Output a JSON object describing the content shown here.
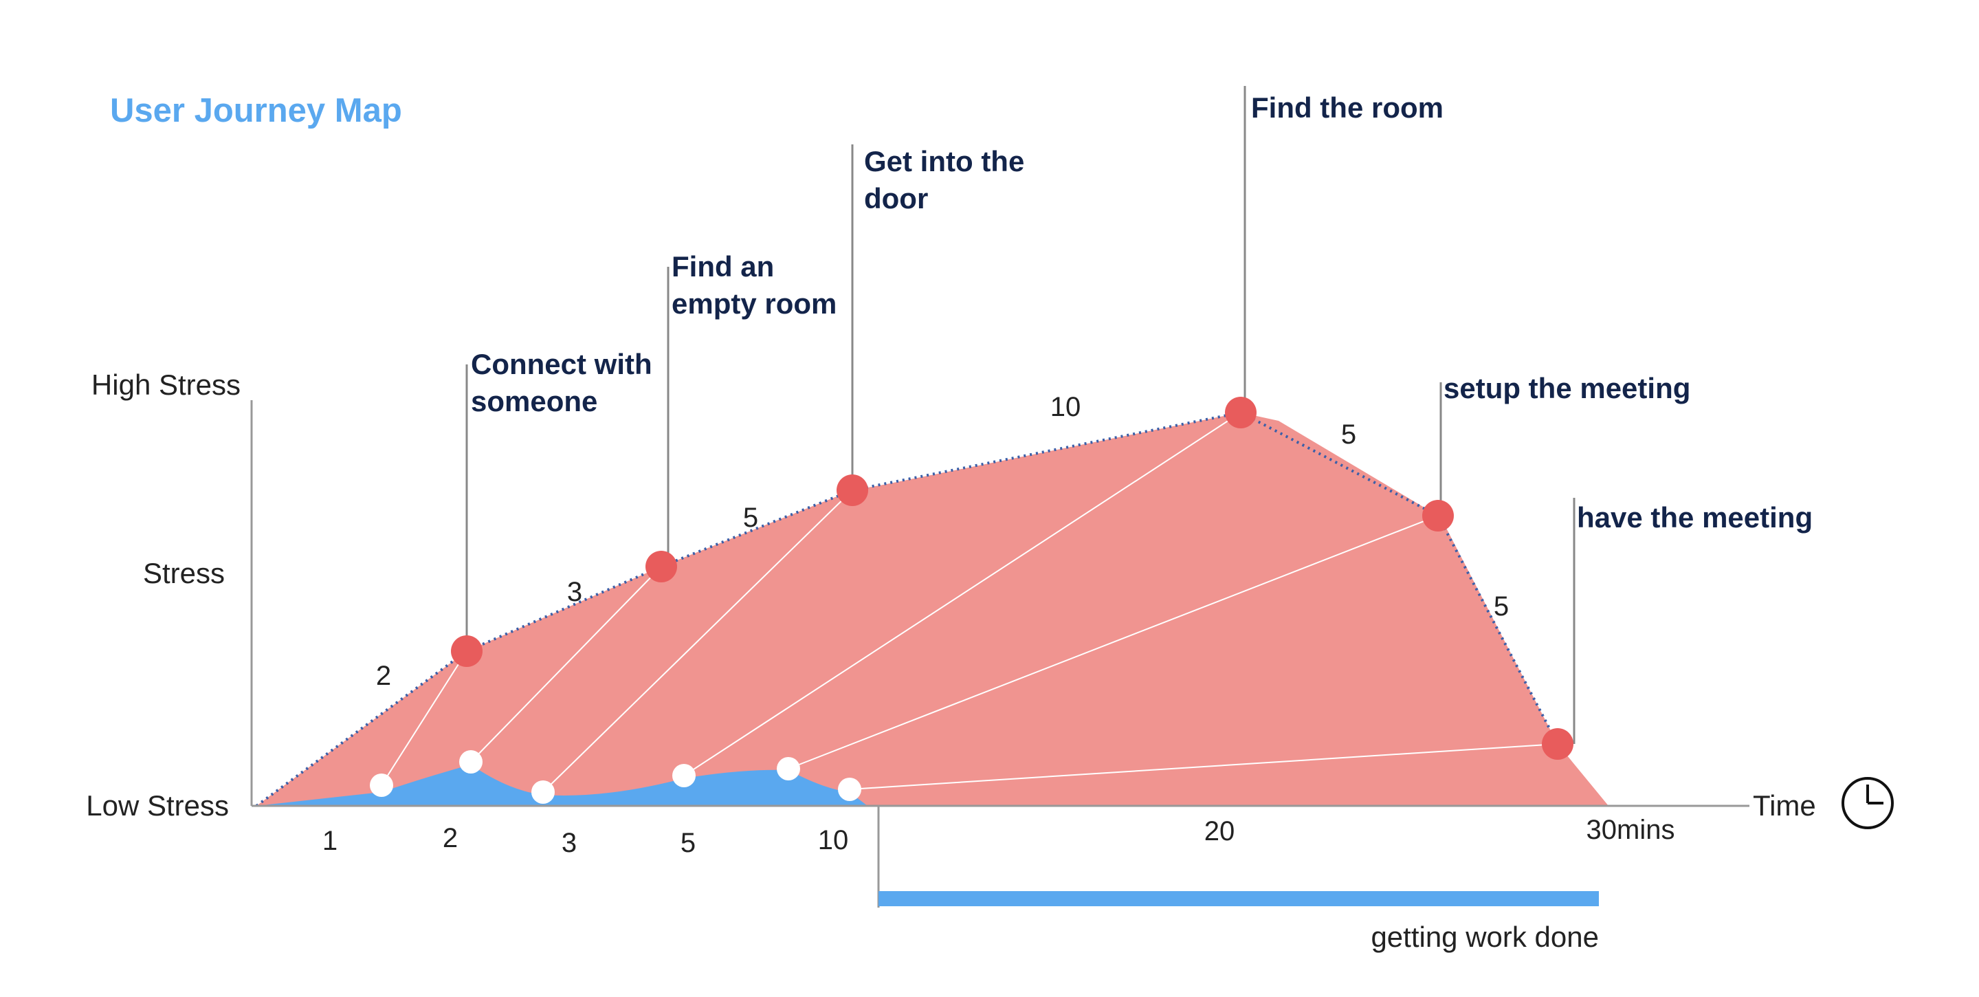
{
  "title": "User Journey Map",
  "y_axis": {
    "high": "High Stress",
    "mid": "Stress",
    "low": "Low Stress"
  },
  "x_axis": {
    "label": "Time",
    "ticks": [
      "1",
      "2",
      "3",
      "5",
      "10",
      "20",
      "30mins"
    ]
  },
  "steps": [
    {
      "lines": [
        "Connect with",
        "someone"
      ]
    },
    {
      "lines": [
        "Find an",
        "empty room"
      ]
    },
    {
      "lines": [
        "Get into the",
        "door"
      ]
    },
    {
      "lines": [
        "Find the room"
      ]
    },
    {
      "lines": [
        "setup the meeting"
      ]
    },
    {
      "lines": [
        "have the meeting"
      ]
    }
  ],
  "segment_labels": [
    "2",
    "3",
    "5",
    "10",
    "5",
    "5"
  ],
  "phase": {
    "label": "getting work done"
  },
  "colors": {
    "stress_fill": "#f09490",
    "stress_dot": "#e85c5c",
    "baseline_fill": "#5aa8ef",
    "phase_bar": "#5aa8ef",
    "title": "#5aa8ef",
    "step_text": "#13244a"
  },
  "icons": {
    "time": "clock-icon"
  }
}
